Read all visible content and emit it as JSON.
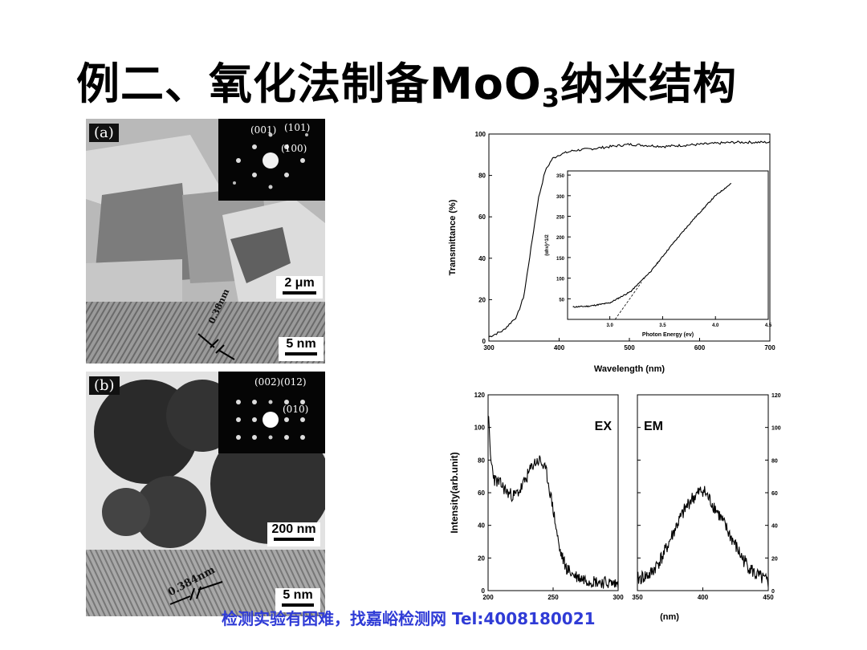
{
  "slide": {
    "title_pre": "例二、氧化法制备MoO",
    "title_sub": "3",
    "title_post": "纳米结构",
    "watermark": "检测实验有困难，找嘉峪检测网 Tel:4008180021"
  },
  "tem_a": {
    "label": "(a)",
    "saed_labels": [
      "(001)",
      "(101)",
      "(100)"
    ],
    "scale_top": "2 μm",
    "lattice": "0.38nm",
    "scale_bottom": "5 nm"
  },
  "tem_b": {
    "label": "(b)",
    "saed_labels": [
      "(002)(012)",
      "(010)"
    ],
    "scale_top": "200 nm",
    "lattice": "0.384nm",
    "scale_bottom": "5 nm"
  },
  "chart_data": [
    {
      "type": "line",
      "xlabel": "Wavelength (nm)",
      "ylabel": "Transmittance (%)",
      "xlim": [
        300,
        700
      ],
      "ylim": [
        0,
        100
      ],
      "xticks": [
        300,
        400,
        500,
        600,
        700
      ],
      "yticks": [
        0,
        20,
        40,
        60,
        80,
        100
      ],
      "series": [
        {
          "x": [
            300,
            320,
            340,
            350,
            360,
            370,
            380,
            390,
            400,
            420,
            450,
            500,
            550,
            600,
            650,
            700
          ],
          "y": [
            2,
            5,
            12,
            22,
            45,
            68,
            82,
            88,
            90,
            92,
            93,
            95,
            94,
            95,
            96,
            96
          ]
        }
      ],
      "inset": {
        "type": "line",
        "xlabel": "Photon Energy (ev)",
        "ylabel": "(αhν)^1/2",
        "xlim": [
          2.6,
          4.5
        ],
        "ylim": [
          0,
          360
        ],
        "xticks": [
          3.0,
          3.5,
          4.0,
          4.5
        ],
        "yticks": [
          50,
          100,
          150,
          200,
          250,
          300,
          350
        ],
        "series": [
          {
            "x": [
              2.65,
              2.8,
              3.0,
              3.2,
              3.4,
              3.6,
              3.8,
              4.0,
              4.15
            ],
            "y": [
              30,
              32,
              40,
              68,
              120,
              185,
              245,
              300,
              330
            ]
          }
        ]
      }
    },
    {
      "type": "line",
      "label": "EX",
      "ylabel": "Intensity(arb.unit)",
      "xlim": [
        200,
        300
      ],
      "ylim": [
        0,
        120
      ],
      "xticks": [
        200,
        250,
        300
      ],
      "yticks": [
        0,
        20,
        40,
        60,
        80,
        100,
        120
      ],
      "series": [
        {
          "x": [
            200,
            202,
            205,
            210,
            215,
            220,
            225,
            230,
            235,
            240,
            245,
            250,
            255,
            260,
            265,
            270,
            280,
            290,
            300
          ],
          "y": [
            110,
            80,
            68,
            65,
            60,
            58,
            62,
            70,
            78,
            80,
            72,
            50,
            25,
            14,
            10,
            8,
            6,
            5,
            4
          ]
        }
      ]
    },
    {
      "type": "line",
      "label": "EM",
      "xlabel": "(nm)",
      "ylim": [
        0,
        120
      ],
      "xlim": [
        350,
        450
      ],
      "xticks": [
        350,
        400,
        450
      ],
      "yticks": [
        0,
        20,
        40,
        60,
        80,
        100,
        120
      ],
      "series": [
        {
          "x": [
            350,
            360,
            370,
            380,
            390,
            400,
            410,
            420,
            430,
            440,
            450
          ],
          "y": [
            7,
            10,
            22,
            40,
            55,
            62,
            50,
            35,
            20,
            10,
            5
          ]
        }
      ]
    }
  ],
  "colors": {
    "watermark": "#2f3bd6",
    "line": "#000000"
  }
}
